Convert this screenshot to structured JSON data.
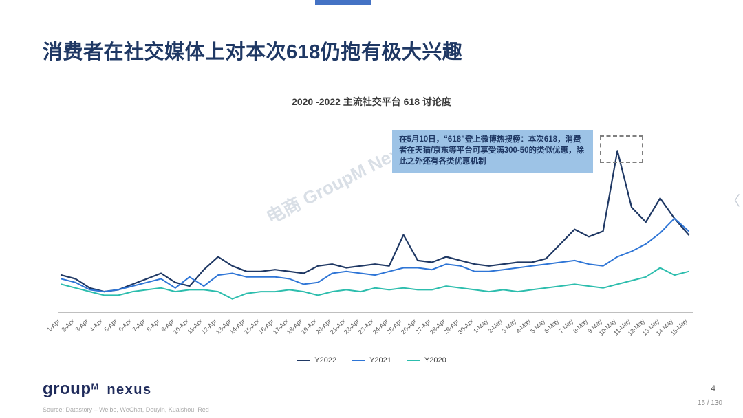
{
  "slide": {
    "title": "消费者在社交媒体上对本次618仍抱有极大兴趣",
    "page_number": "4",
    "page_indicator": "15 / 130",
    "source": "Source: Datastory – Weibo, WeChat, Douyin, Kuaishou, Red",
    "logo": {
      "group": "group",
      "m": "M",
      "nexus": "nexus"
    },
    "chevron": "〈"
  },
  "watermark": "电商 GroupM Nexus",
  "annotation": {
    "text": "在5月10日，“618”登上微博热搜榜：本次618，消费者在天猫/京东等平台可享受满300-50的类似优惠，除此之外还有各类优惠机制",
    "bg_color": "#9DC3E6",
    "text_color": "#1F3864"
  },
  "chart_data": {
    "type": "line",
    "title": "2020 -2022 主流社交平台 618 讨论度",
    "xlabel": "",
    "ylabel": "",
    "ylim": [
      0,
      100
    ],
    "grid": false,
    "legend_position": "bottom",
    "highlight": {
      "target": "10-May peak of Y2022",
      "style": "gray dashed box"
    },
    "categories": [
      "1-Apr",
      "2-Apr",
      "3-Apr",
      "4-Apr",
      "5-Apr",
      "6-Apr",
      "7-Apr",
      "8-Apr",
      "9-Apr",
      "10-Apr",
      "11-Apr",
      "12-Apr",
      "13-Apr",
      "14-Apr",
      "15-Apr",
      "16-Apr",
      "17-Apr",
      "18-Apr",
      "19-Apr",
      "20-Apr",
      "21-Apr",
      "22-Apr",
      "23-Apr",
      "24-Apr",
      "25-Apr",
      "26-Apr",
      "27-Apr",
      "28-Apr",
      "29-Apr",
      "30-Apr",
      "1-May",
      "2-May",
      "3-May",
      "4-May",
      "5-May",
      "6-May",
      "7-May",
      "8-May",
      "9-May",
      "10-May",
      "11-May",
      "12-May",
      "13-May",
      "14-May",
      "15-May"
    ],
    "series": [
      {
        "name": "Y2022",
        "color": "#1F3864",
        "values": [
          21,
          19,
          14,
          12,
          13,
          16,
          19,
          22,
          17,
          15,
          24,
          31,
          26,
          23,
          23,
          24,
          23,
          22,
          26,
          27,
          25,
          26,
          27,
          26,
          43,
          29,
          28,
          31,
          29,
          27,
          26,
          27,
          28,
          28,
          30,
          38,
          46,
          42,
          45,
          89,
          58,
          50,
          63,
          52,
          43
        ]
      },
      {
        "name": "Y2021",
        "color": "#2E75D6",
        "values": [
          19,
          17,
          13,
          12,
          13,
          15,
          17,
          19,
          14,
          20,
          15,
          21,
          22,
          20,
          20,
          20,
          19,
          16,
          17,
          22,
          23,
          22,
          21,
          23,
          25,
          25,
          24,
          27,
          26,
          23,
          23,
          24,
          25,
          26,
          27,
          28,
          29,
          27,
          26,
          31,
          34,
          38,
          44,
          52,
          45
        ]
      },
      {
        "name": "Y2020",
        "color": "#2CBDAD",
        "values": [
          16,
          14,
          12,
          10,
          10,
          12,
          13,
          14,
          12,
          13,
          13,
          12,
          8,
          11,
          12,
          12,
          13,
          12,
          10,
          12,
          13,
          12,
          14,
          13,
          14,
          13,
          13,
          15,
          14,
          13,
          12,
          13,
          12,
          13,
          14,
          15,
          16,
          15,
          14,
          16,
          18,
          20,
          25,
          21,
          23
        ]
      }
    ]
  }
}
